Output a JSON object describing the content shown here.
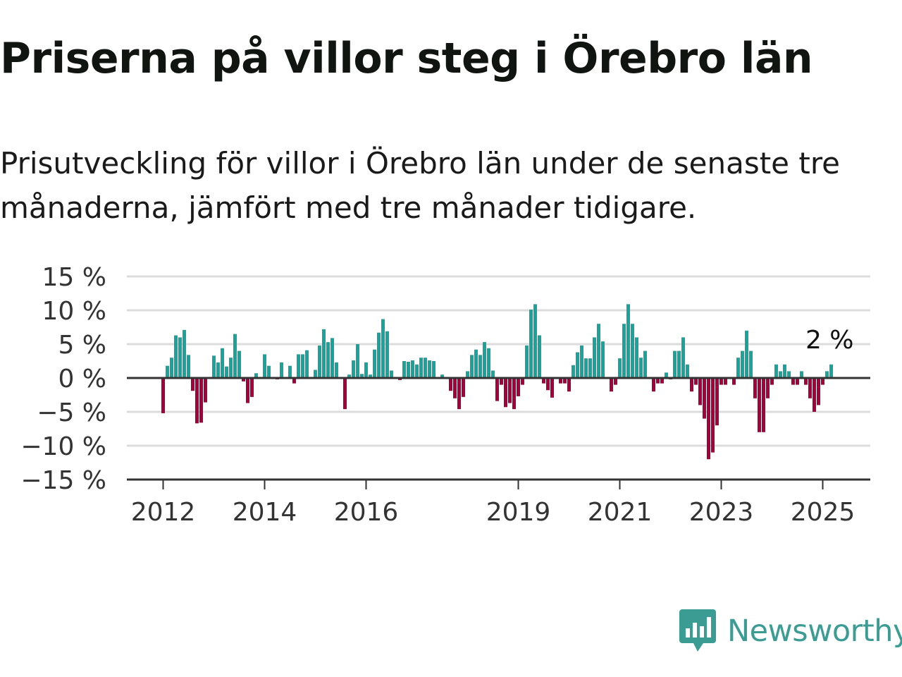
{
  "title": "Priserna på villor steg i Örebro län",
  "subtitle": "Prisutveckling för villor i Örebro län under de senaste tre månaderna, jämfört med tre månader tidigare.",
  "brand": {
    "name": "Newsworthy",
    "icon": "newsworthy-logo-icon"
  },
  "colors": {
    "positive": "#1aa39a",
    "negative": "#a4003c",
    "grid": "#dcdcdc",
    "axis": "#333333",
    "brand": "#3a9c93"
  },
  "chart_data": {
    "type": "bar",
    "x_start": "2012-01",
    "y_unit": "%",
    "ylim": [
      -15,
      15
    ],
    "y_ticks": [
      15,
      10,
      5,
      0,
      -5,
      -10,
      -15
    ],
    "y_tick_labels": [
      "15 %",
      "10 %",
      "5 %",
      "0 %",
      "−5 %",
      "−10 %",
      "−15 %"
    ],
    "x_ticks": [
      "2012",
      "2014",
      "2016",
      "2019",
      "2021",
      "2023",
      "2025"
    ],
    "grid": true,
    "last_value_label": "2 %",
    "values": [
      -5.2,
      1.8,
      3,
      6.3,
      6,
      7.1,
      3.4,
      -1.9,
      -6.7,
      -6.6,
      -3.6,
      0,
      3.3,
      2.3,
      4.4,
      1.7,
      3,
      6.5,
      4,
      -0.5,
      -3.7,
      -2.8,
      0.7,
      0,
      3.5,
      1.8,
      0,
      -0.2,
      2.3,
      0,
      1.8,
      -0.8,
      3.5,
      3.5,
      4.1,
      0,
      1.2,
      4.8,
      7.2,
      5.3,
      5.9,
      2.3,
      0,
      -4.6,
      0.5,
      2.6,
      5,
      0.6,
      2.3,
      0.5,
      4.2,
      6.7,
      8.7,
      6.9,
      1.1,
      0,
      -0.3,
      2.5,
      2.4,
      2.6,
      2,
      3,
      3,
      2.6,
      2.5,
      0,
      0.5,
      0,
      -1.9,
      -3,
      -4.6,
      -2.8,
      1,
      3.4,
      4.2,
      3.4,
      5.3,
      4.4,
      1.1,
      -3.4,
      -1,
      -4.3,
      -3.7,
      -4.6,
      -2.7,
      -1,
      4.8,
      10.1,
      10.9,
      6.3,
      -0.8,
      -1.8,
      -2.9,
      0,
      -0.8,
      -0.8,
      -2,
      1.9,
      3.8,
      4.8,
      2.9,
      2.9,
      6,
      8,
      5.4,
      0,
      -2,
      -1,
      2.9,
      8,
      10.9,
      8,
      6,
      3,
      4,
      0,
      -2,
      -0.8,
      -0.8,
      0.8,
      -0.2,
      4,
      4,
      6,
      2,
      -2,
      -1,
      -4,
      -6,
      -12,
      -11,
      -7,
      -1,
      -1,
      0,
      -1,
      3,
      4,
      7,
      4,
      -3,
      -8,
      -8,
      -3,
      -1,
      2,
      1,
      2,
      1,
      -1,
      -1,
      1,
      -1,
      -3,
      -5,
      -4,
      -1,
      1,
      2
    ]
  }
}
